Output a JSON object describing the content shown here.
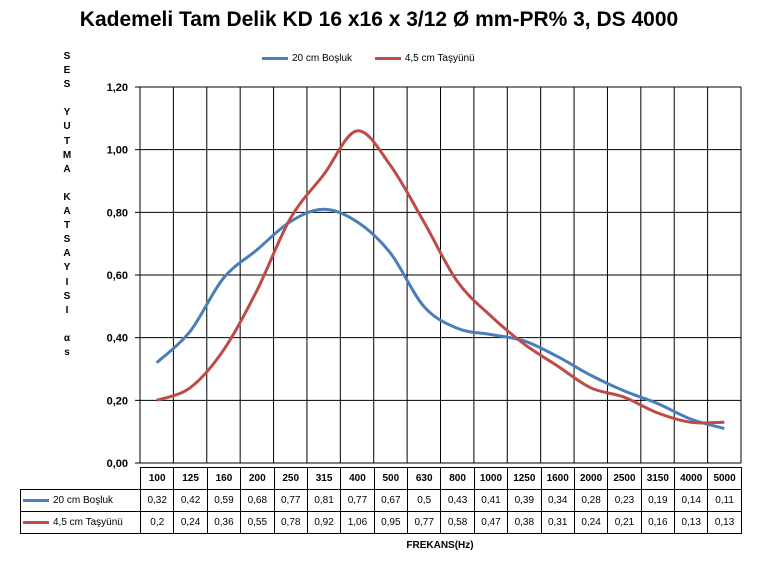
{
  "chart_data": {
    "type": "line",
    "title": "Kademeli Tam Delik KD 16 x16 x 3/12 Ø mm-PR% 3, DS 4000",
    "xlabel": "FREKANS(Hz)",
    "ylabel_chars": [
      "S",
      "E",
      "S",
      "",
      "Y",
      "U",
      "T",
      "M",
      "A",
      "",
      "K",
      "A",
      "T",
      "S",
      "A",
      "Y",
      "I",
      "S",
      "I",
      "",
      "α",
      "s"
    ],
    "ylim": [
      0,
      1.2
    ],
    "yticks": [
      "0,00",
      "0,20",
      "0,40",
      "0,60",
      "0,80",
      "1,00",
      "1,20"
    ],
    "categories": [
      "100",
      "125",
      "160",
      "200",
      "250",
      "315",
      "400",
      "500",
      "630",
      "800",
      "1000",
      "1250",
      "1600",
      "2000",
      "2500",
      "3150",
      "4000",
      "5000"
    ],
    "series": [
      {
        "name": "20 cm Boşluk",
        "color": "#4A7EBB",
        "values": [
          0.32,
          0.42,
          0.59,
          0.68,
          0.77,
          0.81,
          0.77,
          0.67,
          0.5,
          0.43,
          0.41,
          0.39,
          0.34,
          0.28,
          0.23,
          0.19,
          0.14,
          0.11
        ],
        "labels": [
          "0,32",
          "0,42",
          "0,59",
          "0,68",
          "0,77",
          "0,81",
          "0,77",
          "0,67",
          "0,5",
          "0,43",
          "0,41",
          "0,39",
          "0,34",
          "0,28",
          "0,23",
          "0,19",
          "0,14",
          "0,11"
        ]
      },
      {
        "name": "4,5 cm Taşyünü",
        "color": "#BE4B48",
        "values": [
          0.2,
          0.24,
          0.36,
          0.55,
          0.78,
          0.92,
          1.06,
          0.95,
          0.77,
          0.58,
          0.47,
          0.38,
          0.31,
          0.24,
          0.21,
          0.16,
          0.13,
          0.13
        ],
        "labels": [
          "0,2",
          "0,24",
          "0,36",
          "0,55",
          "0,78",
          "0,92",
          "1,06",
          "0,95",
          "0,77",
          "0,58",
          "0,47",
          "0,38",
          "0,31",
          "0,24",
          "0,21",
          "0,16",
          "0,13",
          "0,13"
        ]
      }
    ],
    "grid": true,
    "legend": "top"
  }
}
